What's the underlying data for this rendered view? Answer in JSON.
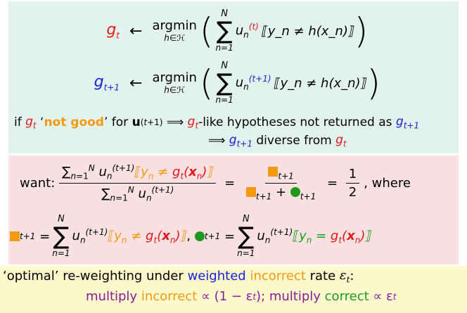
{
  "eq1": {
    "lhs_g": "g",
    "lhs_sub": "t",
    "arrow": "←",
    "argmin": "argmin",
    "argmin_under": "h∈ℋ",
    "sum_top": "N",
    "sum_bottom": "n=1",
    "u_sup": "(t)",
    "bracket_expr": "⟦y_n ≠ h(x_n)⟧"
  },
  "eq2": {
    "lhs_g": "g",
    "lhs_sub": "t+1",
    "arrow": "←",
    "argmin": "argmin",
    "argmin_under": "h∈ℋ",
    "sum_top": "N",
    "sum_bottom": "n=1",
    "u_sup": "(t+1)",
    "bracket_expr": "⟦y_n ≠ h(x_n)⟧"
  },
  "if_line": {
    "prefix": "if",
    "not_good": "not good",
    "for": "for",
    "implies": "⟹",
    "rest": "-like hypotheses not returned as",
    "diverse": "diverse from"
  },
  "want_line": {
    "want": "want:",
    "half_num": "1",
    "half_den": "2",
    "where": ", where"
  },
  "defs_line": {
    "sum_top": "N",
    "sum_bottom": "n=1"
  },
  "bottom": {
    "line1_prefix": "‘optimal’ re-weighting under",
    "weighted": "weighted",
    "incorrect": "incorrect",
    "rate": "rate",
    "line2_multiply": "multiply",
    "line2_incorrect": "incorrect",
    "line2_mid": "∝ (1 − ε",
    "line2_sep": "); multiply",
    "line2_correct": "correct",
    "line2_end": "∝ ε"
  },
  "colors": {
    "red": "#e21a1a",
    "blue": "#1a22d8",
    "orange": "#f39a12",
    "green": "#1d9a1d",
    "purple": "#8a1a9a",
    "box_green": "#e2f3ee",
    "box_pink": "#f9e1e1",
    "box_yellow": "#fdf9cc"
  }
}
